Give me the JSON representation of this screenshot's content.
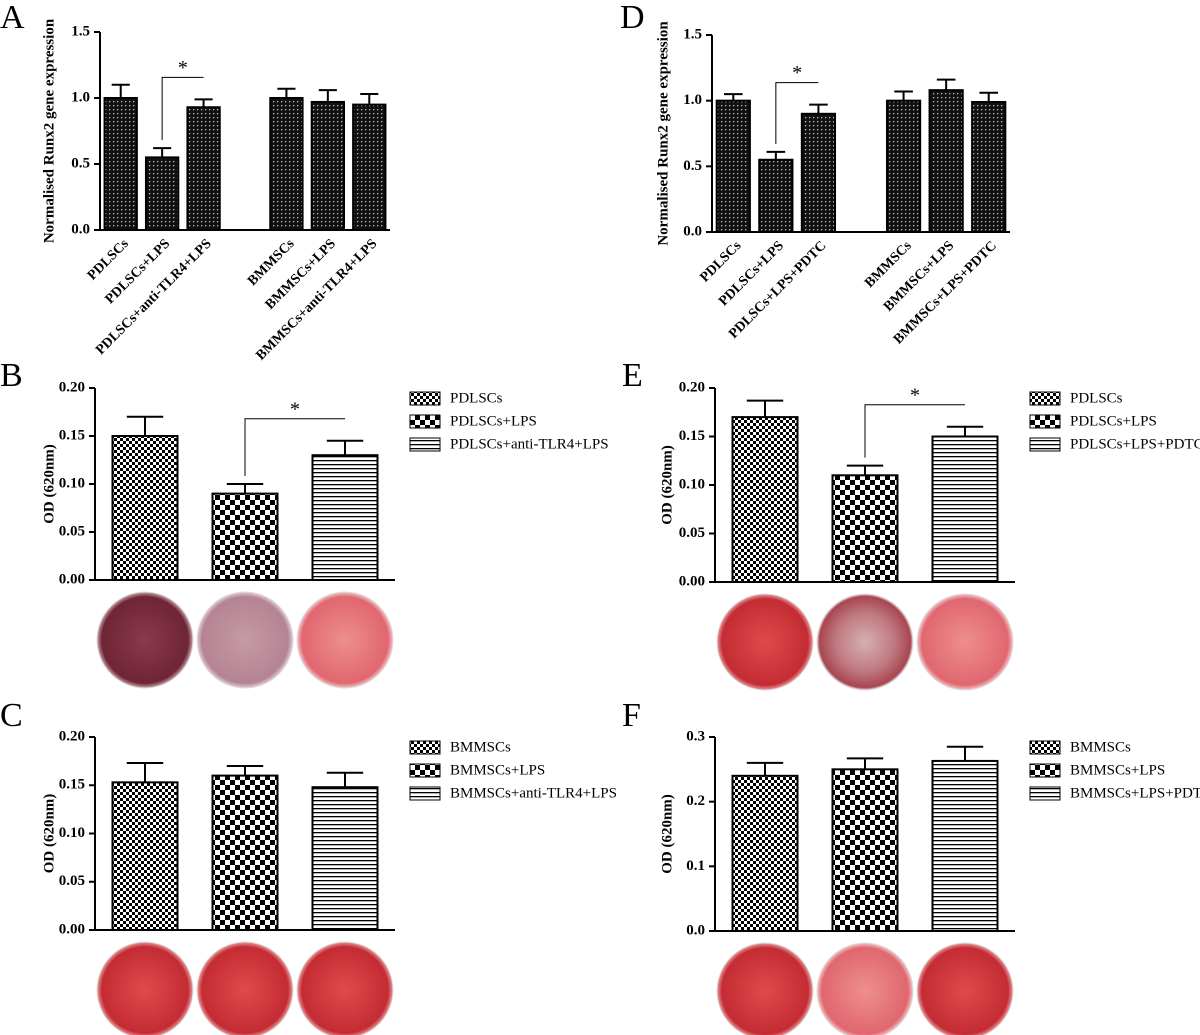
{
  "chart_data": [
    {
      "panel": "A",
      "type": "bar",
      "ylabel": "Normalised Runx2 gene expression",
      "categories": [
        "PDLSCs",
        "PDLSCs+LPS",
        "PDLSCs+anti-TLR4+LPS",
        null,
        "BMMSCs",
        "BMMSCs+LPS",
        "BMMSCs+anti-TLR4+LPS"
      ],
      "values": [
        1.0,
        0.55,
        0.93,
        null,
        1.0,
        0.97,
        0.95
      ],
      "errors": [
        0.1,
        0.07,
        0.06,
        null,
        0.07,
        0.09,
        0.08
      ],
      "ylim": [
        0,
        1.5
      ],
      "yticks": [
        {
          "value": 0,
          "label": "0.0"
        },
        0.5,
        {
          "value": 1,
          "label": "1.0"
        },
        1.5
      ],
      "pattern": "dots",
      "significance": [
        {
          "label": "*",
          "between": [
            1,
            2
          ]
        }
      ]
    },
    {
      "panel": "D",
      "type": "bar",
      "ylabel": "Normalised Runx2 gene expression",
      "categories": [
        "PDLSCs",
        "PDLSCs+LPS",
        "PDLSCs+LPS+PDTC",
        null,
        "BMMSCs",
        "BMMSCs+LPS",
        "BMMSCs+LPS+PDTC"
      ],
      "values": [
        1.0,
        0.55,
        0.9,
        null,
        1.0,
        1.08,
        0.99
      ],
      "errors": [
        0.05,
        0.06,
        0.07,
        null,
        0.07,
        0.08,
        0.07
      ],
      "ylim": [
        0,
        1.5
      ],
      "yticks": [
        {
          "value": 0,
          "label": "0.0"
        },
        0.5,
        {
          "value": 1,
          "label": "1.0"
        },
        1.5
      ],
      "pattern": "dots",
      "significance": [
        {
          "label": "*",
          "between": [
            1,
            2
          ]
        }
      ]
    },
    {
      "panel": "B",
      "type": "bar",
      "ylabel": "OD (620nm)",
      "categories": [
        "PDLSCs",
        "PDLSCs+LPS",
        "PDLSCs+anti-TLR4+LPS"
      ],
      "values": [
        0.15,
        0.09,
        0.13
      ],
      "errors": [
        0.02,
        0.01,
        0.015
      ],
      "ylim": [
        0,
        0.2
      ],
      "yticks": [
        {
          "value": 0,
          "label": "0.00"
        },
        0.05,
        {
          "value": 0.1,
          "label": "0.10"
        },
        0.15,
        {
          "value": 0.2,
          "label": "0.20"
        }
      ],
      "patterns": [
        "fine-check",
        "coarse-check",
        "horizontal-lines"
      ],
      "legend": "right",
      "significance": [
        {
          "label": "*",
          "between": [
            1,
            2
          ]
        }
      ]
    },
    {
      "panel": "C",
      "type": "bar",
      "ylabel": "OD (620nm)",
      "categories": [
        "BMMSCs",
        "BMMSCs+LPS",
        "BMMSCs+anti-TLR4+LPS"
      ],
      "values": [
        0.153,
        0.16,
        0.148
      ],
      "errors": [
        0.02,
        0.01,
        0.015
      ],
      "ylim": [
        0,
        0.2
      ],
      "yticks": [
        {
          "value": 0,
          "label": "0.00"
        },
        0.05,
        {
          "value": 0.1,
          "label": "0.10"
        },
        0.15,
        {
          "value": 0.2,
          "label": "0.20"
        }
      ],
      "patterns": [
        "fine-check",
        "coarse-check",
        "horizontal-lines"
      ],
      "legend": "right"
    },
    {
      "panel": "E",
      "type": "bar",
      "ylabel": "OD (620nm)",
      "categories": [
        "PDLSCs",
        "PDLSCs+LPS",
        "PDLSCs+LPS+PDTC"
      ],
      "values": [
        0.17,
        0.11,
        0.15
      ],
      "errors": [
        0.017,
        0.01,
        0.01
      ],
      "ylim": [
        0,
        0.2
      ],
      "yticks": [
        {
          "value": 0,
          "label": "0.00"
        },
        0.05,
        {
          "value": 0.1,
          "label": "0.10"
        },
        0.15,
        {
          "value": 0.2,
          "label": "0.20"
        }
      ],
      "patterns": [
        "fine-check",
        "coarse-check",
        "horizontal-lines"
      ],
      "legend": "right",
      "significance": [
        {
          "label": "*",
          "between": [
            1,
            2
          ]
        }
      ]
    },
    {
      "panel": "F",
      "type": "bar",
      "ylabel": "OD (620nm)",
      "categories": [
        "BMMSCs",
        "BMMSCs+LPS",
        "BMMSCs+LPS+PDTC"
      ],
      "values": [
        0.24,
        0.25,
        0.263
      ],
      "errors": [
        0.02,
        0.017,
        0.022
      ],
      "ylim": [
        0,
        0.3
      ],
      "yticks": [
        {
          "value": 0,
          "label": "0.0"
        },
        0.1,
        0.2,
        0.3
      ],
      "patterns": [
        "fine-check",
        "coarse-check",
        "horizontal-lines"
      ],
      "legend": "right"
    }
  ]
}
